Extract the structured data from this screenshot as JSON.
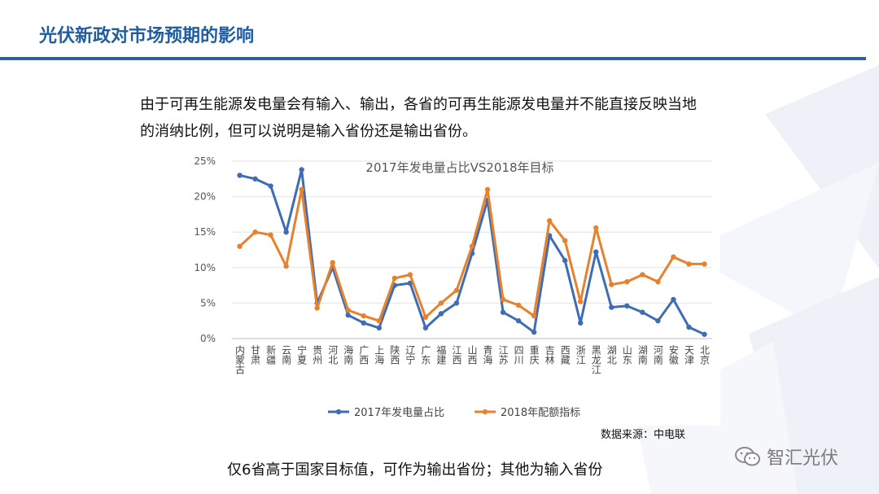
{
  "header": {
    "title": "光伏新政对市场预期的影响"
  },
  "description": {
    "line1": "由于可再生能源发电量会有输入、输出，各省的可再生能源发电量并不能直接反映当地",
    "line2": "的消纳比例，但可以说明是输入省份还是输出省份。"
  },
  "source_note": "数据来源：中电联",
  "conclusion": "仅6省高于国家目标值，可作为输出省份；其他为输入省份",
  "watermark": {
    "text": "智汇光伏",
    "icon": "wechat-icon"
  },
  "colors": {
    "title": "#1f5da0",
    "rule": "#2e5f9e",
    "series_2017": "#3e6db5",
    "series_2018": "#e8812b"
  },
  "chart_data": {
    "type": "line",
    "title": "2017年发电量占比VS2018年目标",
    "categories": [
      "内蒙古",
      "甘肃",
      "新疆",
      "云南",
      "宁夏",
      "贵州",
      "河北",
      "海南",
      "广西",
      "上海",
      "陕西",
      "辽宁",
      "广东",
      "福建",
      "江西",
      "山西",
      "青海",
      "江苏",
      "四川",
      "重庆",
      "吉林",
      "西藏",
      "浙江",
      "黑龙江",
      "湖北",
      "山东",
      "湖南",
      "河南",
      "安徽",
      "天津",
      "北京"
    ],
    "series": [
      {
        "name": "2017年发电量占比",
        "values": [
          23.0,
          22.5,
          21.5,
          15.0,
          23.8,
          5.0,
          10.0,
          3.3,
          2.2,
          1.5,
          7.5,
          7.8,
          1.5,
          3.5,
          5.0,
          12.0,
          19.5,
          3.7,
          2.5,
          0.9,
          14.5,
          11.0,
          2.2,
          12.2,
          4.4,
          4.6,
          3.7,
          2.5,
          5.5,
          1.6,
          0.6
        ]
      },
      {
        "name": "2018年配额指标",
        "values": [
          13.0,
          15.0,
          14.6,
          10.2,
          21.0,
          4.3,
          10.7,
          4.0,
          3.2,
          2.5,
          8.5,
          9.0,
          3.0,
          5.0,
          6.8,
          13.0,
          21.0,
          5.5,
          4.7,
          3.2,
          16.6,
          13.8,
          5.2,
          15.6,
          7.6,
          8.0,
          9.0,
          8.0,
          11.5,
          10.5,
          10.5
        ]
      }
    ],
    "ylim": [
      0,
      25
    ],
    "yticks": [
      "0%",
      "5%",
      "10%",
      "15%",
      "20%",
      "25%"
    ],
    "grid": "horizontal",
    "legend_position": "bottom"
  }
}
